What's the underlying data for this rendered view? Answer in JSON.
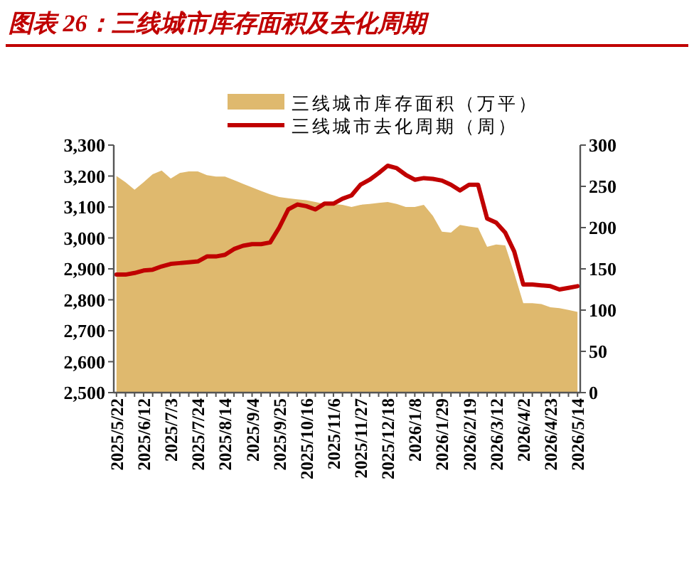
{
  "chart_data": {
    "type": "area",
    "title": "图表 26：三线城市库存面积及去化周期",
    "categories": [
      "2025/5/22",
      null,
      null,
      "2025/6/12",
      null,
      null,
      "2025/7/3",
      null,
      null,
      "2025/7/24",
      null,
      null,
      "2025/8/14",
      null,
      null,
      "2025/9/4",
      null,
      null,
      "2025/9/25",
      null,
      null,
      "2025/10/16",
      null,
      null,
      "2025/11/6",
      null,
      null,
      "2025/11/27",
      null,
      null,
      "2025/12/18",
      null,
      null,
      "2026/1/8",
      null,
      null,
      "2026/1/29",
      null,
      null,
      "2026/2/19",
      null,
      null,
      "2026/3/12",
      null,
      null,
      "2026/4/2",
      null,
      null,
      "2026/4/23",
      null,
      null,
      "2026/5/14"
    ],
    "series": [
      {
        "name": "三线城市库存面积（万平）",
        "type": "area",
        "color": "#dfb96e",
        "values": [
          3200,
          3180,
          3156,
          3180,
          3206,
          3218,
          3192,
          3210,
          3215,
          3215,
          3203,
          3198,
          3198,
          3187,
          3175,
          3163,
          3152,
          3141,
          3132,
          3128,
          3125,
          3122,
          3116,
          3110,
          3110,
          3107,
          3100,
          3107,
          3110,
          3113,
          3116,
          3110,
          3100,
          3100,
          3107,
          3071,
          3020,
          3017,
          3042,
          3037,
          3033,
          2971,
          2979,
          2976,
          2886,
          2789,
          2789,
          2786,
          2776,
          2773,
          2767,
          2761
        ]
      },
      {
        "name": "三线城市去化周期（周）",
        "type": "line",
        "axis": "y2",
        "color": "#c00000",
        "values": [
          143,
          143,
          145,
          148,
          149,
          153,
          156,
          157,
          158,
          159,
          165,
          165,
          167,
          174,
          178,
          180,
          180,
          182,
          200,
          222,
          228,
          226,
          222,
          229,
          229,
          235,
          239,
          252,
          258,
          266,
          275,
          272,
          264,
          258,
          260,
          259,
          257,
          252,
          245,
          252,
          252,
          211,
          206,
          194,
          171,
          131,
          131,
          130,
          129,
          125,
          127,
          129
        ]
      }
    ],
    "ylim": [
      2500,
      3300
    ],
    "yticks": [
      {
        "value": 2500,
        "label": "2,500"
      },
      {
        "value": 2600,
        "label": "2,600"
      },
      {
        "value": 2700,
        "label": "2,700"
      },
      {
        "value": 2800,
        "label": "2,800"
      },
      {
        "value": 2900,
        "label": "2,900"
      },
      {
        "value": 3000,
        "label": "3,000"
      },
      {
        "value": 3100,
        "label": "3,100"
      },
      {
        "value": 3200,
        "label": "3,200"
      },
      {
        "value": 3300,
        "label": "3,300"
      }
    ],
    "y2lim": [
      0,
      300
    ],
    "y2ticks": [
      0,
      50,
      100,
      150,
      200,
      250,
      300
    ],
    "legend": "top",
    "grid": false
  }
}
